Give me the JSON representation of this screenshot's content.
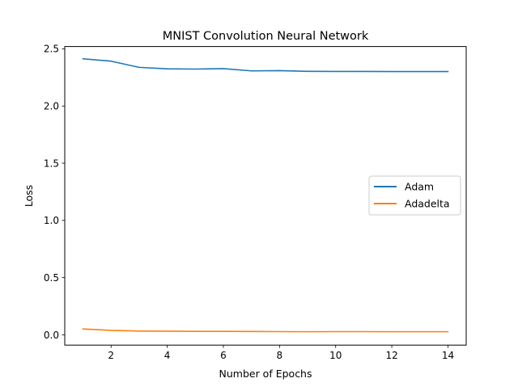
{
  "chart_data": {
    "type": "line",
    "title": "MNIST Convolution Neural Network",
    "xlabel": "Number of Epochs",
    "ylabel": "Loss",
    "x": [
      1,
      2,
      3,
      4,
      5,
      6,
      7,
      8,
      9,
      10,
      11,
      12,
      13,
      14
    ],
    "xlim": [
      0.35,
      14.65
    ],
    "ylim": [
      -0.09,
      2.52
    ],
    "xticks": [
      2,
      4,
      6,
      8,
      10,
      12,
      14
    ],
    "yticks": [
      0.0,
      0.5,
      1.0,
      1.5,
      2.0,
      2.5
    ],
    "grid": false,
    "legend_position": "center-right",
    "series": [
      {
        "name": "Adam",
        "color": "#1f77b4",
        "values": [
          2.413,
          2.392,
          2.338,
          2.325,
          2.323,
          2.327,
          2.307,
          2.309,
          2.303,
          2.302,
          2.302,
          2.301,
          2.301,
          2.301
        ]
      },
      {
        "name": "Adadelta",
        "color": "#ff7f0e",
        "values": [
          0.051,
          0.039,
          0.033,
          0.032,
          0.03,
          0.03,
          0.029,
          0.028,
          0.027,
          0.028,
          0.028,
          0.027,
          0.027,
          0.027
        ]
      }
    ]
  }
}
